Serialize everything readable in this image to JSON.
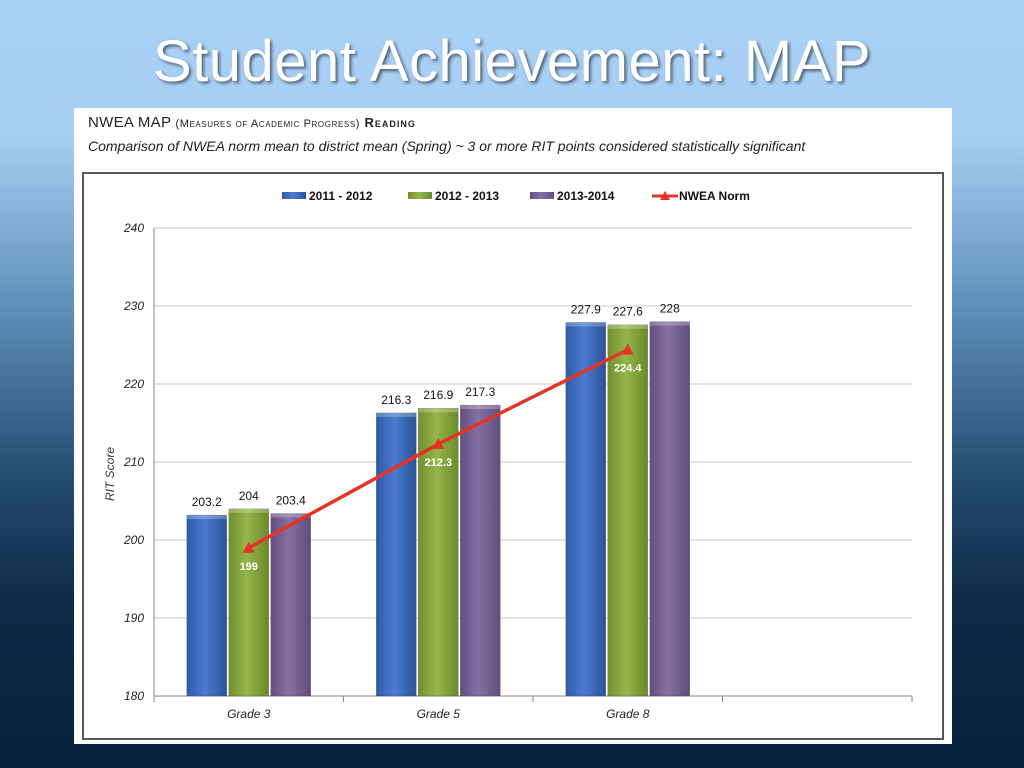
{
  "slide": {
    "title": "Student Achievement: MAP"
  },
  "header": {
    "heading_main": "NWEA MAP",
    "heading_paren": "(Measures of Academic Progress)",
    "heading_subject": "Reading",
    "subheading": "Comparison of NWEA norm mean to district mean (Spring) ~ 3 or more RIT points considered statistically significant"
  },
  "chart_data": {
    "type": "bar",
    "categories": [
      "Grade 3",
      "Grade 5",
      "Grade 8"
    ],
    "series": [
      {
        "name": "2011 - 2012",
        "type": "bar",
        "color": "#3f6fbf",
        "values": [
          203.2,
          216.3,
          227.9
        ],
        "labels": [
          "203.2",
          "216.3",
          "227.9"
        ]
      },
      {
        "name": "2012 - 2013",
        "type": "bar",
        "color": "#86a83f",
        "values": [
          204,
          216.9,
          227.6
        ],
        "labels": [
          "204",
          "216.9",
          "227.6"
        ]
      },
      {
        "name": "2013-2014",
        "type": "bar",
        "color": "#7b6598",
        "values": [
          203.4,
          217.3,
          228
        ],
        "labels": [
          "203.4",
          "217.3",
          "228"
        ]
      },
      {
        "name": "NWEA Norm",
        "type": "line",
        "color": "#e53424",
        "values": [
          199,
          212.3,
          224.4
        ],
        "labels": [
          "199",
          "212.3",
          "224.4"
        ]
      }
    ],
    "ylabel": "RIT Score",
    "xlabel": "",
    "ylim": [
      180,
      240
    ],
    "yticks": [
      180,
      190,
      200,
      210,
      220,
      230,
      240
    ],
    "ytick_labels": [
      "180",
      "190",
      "200",
      "210",
      "220",
      "230",
      "240"
    ],
    "grid": true,
    "legend": "top-center"
  }
}
